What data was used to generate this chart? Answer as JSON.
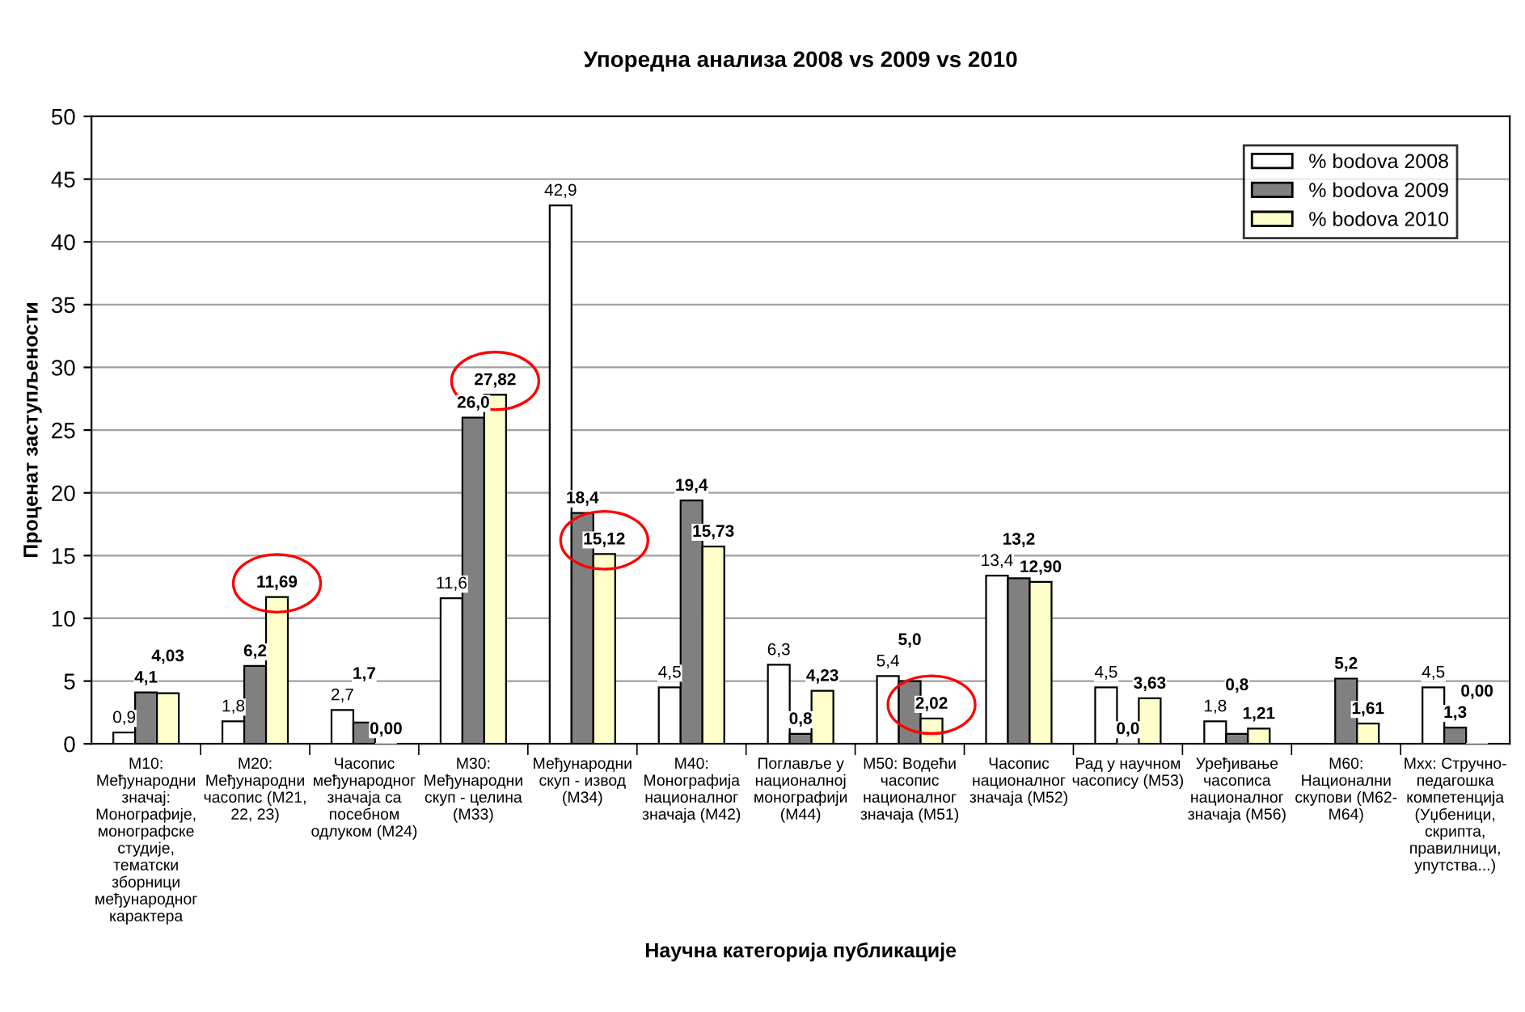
{
  "chart_data": {
    "type": "bar",
    "title": "Упоредна анализа 2008 vs 2009 vs 2010",
    "xlabel": "Научна категорија публикације",
    "ylabel": "Проценат заступљености",
    "categories": [
      "M10:\nМеђународни\nзначај:\nМонографије,\nмонографске\nстудије,\nтематски\nзборници\nмеђународног\nкарактера",
      "M20:\nМеђународни\nчасопис (M21,\n22, 23)",
      "Часопис\nмеђународног\nзначаја са\nпосебном\nодлуком (M24)",
      "M30:\nМеђународни\nскуп - целина\n(M33)",
      "Међународни\nскуп - извод\n(M34)",
      "M40:\nМонографија\nнационалног\nзначаја (M42)",
      "Поглавље у\nнационалној\nмонографији\n(M44)",
      "M50: Водећи\nчасопис\nнационалног\nзначаја (M51)",
      "Часопис\nнационалног\nзначаја (M52)",
      "Рад у научном\nчасопису (M53)",
      "Уређивање\nчасописа\nнационалног\nзначаја (M56)",
      "M60:\nНационални\nскупови (M62-\nM64)",
      "Mxx: Стручно-\nпедагошка\nкомпетенција\n(Уџбеници,\nскрипта,\nправилници,\nупутства...)"
    ],
    "series": [
      {
        "name": "% bodova 2008",
        "color": "#ffffff",
        "values": [
          0.9,
          1.8,
          2.7,
          11.6,
          42.9,
          4.5,
          6.3,
          5.4,
          13.4,
          4.5,
          1.8,
          null,
          4.5
        ],
        "value_labels": [
          "0,9",
          "1,8",
          "2,7",
          "11,6",
          "42,9",
          "4,5",
          "6,3",
          "5,4",
          "13,4",
          "4,5",
          "1,8",
          null,
          "4,5"
        ]
      },
      {
        "name": "% bodova 2009",
        "color": "#808080",
        "values": [
          4.1,
          6.2,
          1.7,
          26.0,
          18.4,
          19.4,
          0.8,
          5.0,
          13.2,
          0.0,
          0.8,
          5.2,
          1.3
        ],
        "value_labels": [
          "4,1",
          "6,2",
          "1,7",
          "26,0",
          "18,4",
          "19,4",
          "0,8",
          "5,0",
          "13,2",
          "0,0",
          "0,8",
          "5,2",
          "1,3"
        ]
      },
      {
        "name": "% bodova 2010",
        "color": "#ffffcc",
        "values": [
          4.03,
          11.69,
          0.0,
          27.82,
          15.12,
          15.73,
          4.23,
          2.02,
          12.9,
          3.63,
          1.21,
          1.61,
          0.0
        ],
        "value_labels": [
          "4,03",
          "11,69",
          "0,00",
          "27,82",
          "15,12",
          "15,73",
          "4,23",
          "2,02",
          "12,90",
          "3,63",
          "1,21",
          "1,61",
          "0,00"
        ]
      }
    ],
    "ylim": [
      0,
      50
    ],
    "yticks": [
      0,
      5,
      10,
      15,
      20,
      25,
      30,
      35,
      40,
      45,
      50
    ],
    "grid": "y",
    "legend": "top right"
  }
}
